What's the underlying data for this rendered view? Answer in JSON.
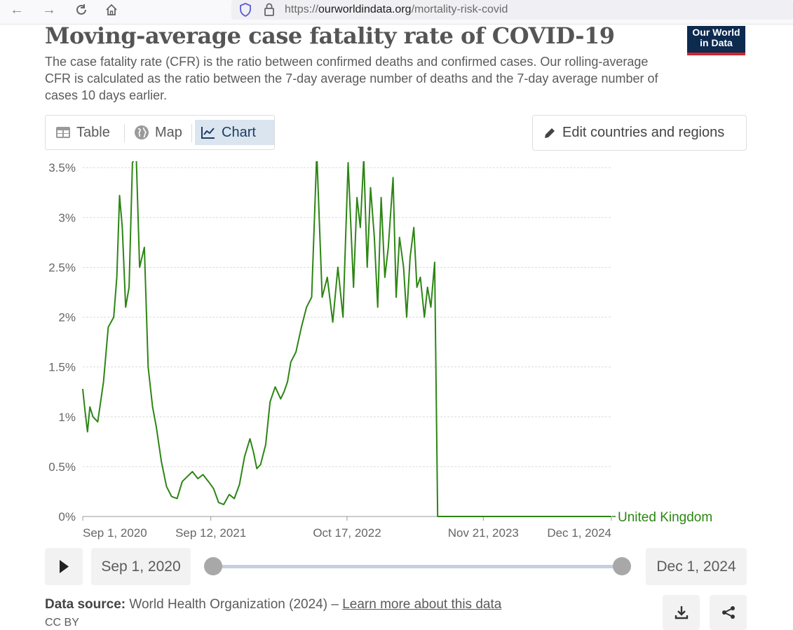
{
  "browser": {
    "url_host": "ourworldindata.org",
    "url_prefix": "https://",
    "url_path": "/mortality-risk-covid",
    "icons": [
      "back-arrow-icon",
      "forward-arrow-icon",
      "reload-icon",
      "home-icon",
      "shield-icon",
      "lock-icon"
    ]
  },
  "header": {
    "title": "Moving-average case fatality rate of COVID-19",
    "subtitle": "The case fatality rate (CFR) is the ratio between confirmed deaths and confirmed cases. Our rolling-average CFR is calculated as the ratio between the 7-day average number of deaths and the 7-day average number of cases 10 days earlier.",
    "logo_line1": "Our World",
    "logo_line2": "in Data",
    "logo_colors": {
      "background": "#0d2a4f",
      "stripe": "#ce2630"
    }
  },
  "tabs": [
    {
      "label": "Table",
      "icon": "table-icon",
      "active": false
    },
    {
      "label": "Map",
      "icon": "globe-icon",
      "active": false
    },
    {
      "label": "Chart",
      "icon": "line-chart-icon",
      "active": true
    }
  ],
  "edit_button": {
    "label": "Edit countries and regions",
    "icon": "pencil-icon"
  },
  "chart_data": {
    "type": "line",
    "title": "",
    "xlabel": "",
    "ylabel": "",
    "y_unit": "%",
    "ylim": [
      0,
      3.6
    ],
    "yticks": [
      0,
      0.5,
      1,
      1.5,
      2,
      2.5,
      3,
      3.5
    ],
    "ytick_labels": [
      "0%",
      "0.5%",
      "1%",
      "1.5%",
      "2%",
      "2.5%",
      "3%",
      "3.5%"
    ],
    "xtick_labels": [
      "Sep 1, 2020",
      "Sep 12, 2021",
      "Oct 17, 2022",
      "Nov 21, 2023",
      "Dec 1, 2024"
    ],
    "xtick_dates": [
      "2020-09-01",
      "2021-09-12",
      "2022-10-17",
      "2023-11-21",
      "2024-12-01"
    ],
    "grid": "horizontal dashed",
    "line_color": "#2d8514",
    "series": [
      {
        "name": "United Kingdom",
        "x": [
          "2020-09-01",
          "2020-09-08",
          "2020-09-15",
          "2020-09-22",
          "2020-10-01",
          "2020-10-15",
          "2020-11-01",
          "2020-11-15",
          "2020-12-01",
          "2020-12-10",
          "2020-12-18",
          "2020-12-26",
          "2021-01-05",
          "2021-01-15",
          "2021-01-25",
          "2021-02-05",
          "2021-02-15",
          "2021-03-01",
          "2021-03-12",
          "2021-03-25",
          "2021-04-05",
          "2021-04-20",
          "2021-05-05",
          "2021-05-20",
          "2021-06-05",
          "2021-06-20",
          "2021-07-05",
          "2021-07-20",
          "2021-08-05",
          "2021-08-20",
          "2021-09-05",
          "2021-09-20",
          "2021-10-05",
          "2021-10-20",
          "2021-11-05",
          "2021-11-20",
          "2021-12-05",
          "2021-12-20",
          "2022-01-05",
          "2022-01-15",
          "2022-01-25",
          "2022-02-05",
          "2022-02-20",
          "2022-03-05",
          "2022-03-20",
          "2022-04-05",
          "2022-04-15",
          "2022-04-25",
          "2022-05-05",
          "2022-05-20",
          "2022-06-05",
          "2022-06-20",
          "2022-07-05",
          "2022-07-20",
          "2022-08-05",
          "2022-08-20",
          "2022-09-05",
          "2022-09-20",
          "2022-10-05",
          "2022-10-20",
          "2022-11-05",
          "2022-11-15",
          "2022-11-25",
          "2022-12-05",
          "2022-12-15",
          "2022-12-25",
          "2023-01-05",
          "2023-01-15",
          "2023-01-25",
          "2023-02-05",
          "2023-02-15",
          "2023-03-01",
          "2023-03-10",
          "2023-03-20",
          "2023-04-01",
          "2023-04-10",
          "2023-04-20",
          "2023-05-01",
          "2023-05-10",
          "2023-05-20",
          "2023-06-01",
          "2023-06-10",
          "2023-06-20",
          "2023-07-01",
          "2023-07-10",
          "2023-07-20",
          "2023-08-01",
          "2023-08-10",
          "2023-08-20",
          "2023-09-01",
          "2023-09-10",
          "2023-09-20",
          "2023-09-28",
          "2023-10-05",
          "2023-10-10",
          "2023-10-15",
          "2023-10-20",
          "2023-10-22",
          "2023-11-21",
          "2024-03-01",
          "2024-07-01",
          "2024-12-01"
        ],
        "values": [
          1.28,
          1.05,
          0.85,
          1.1,
          1.0,
          0.95,
          1.35,
          1.9,
          2.0,
          2.4,
          3.22,
          2.9,
          2.1,
          2.3,
          3.55,
          3.62,
          2.5,
          2.7,
          1.5,
          1.1,
          0.9,
          0.55,
          0.3,
          0.2,
          0.18,
          0.35,
          0.4,
          0.45,
          0.38,
          0.42,
          0.35,
          0.28,
          0.14,
          0.12,
          0.22,
          0.18,
          0.32,
          0.6,
          0.78,
          0.65,
          0.48,
          0.52,
          0.72,
          1.15,
          1.3,
          1.18,
          1.25,
          1.35,
          1.55,
          1.65,
          1.9,
          2.1,
          2.2,
          3.65,
          2.2,
          2.4,
          1.95,
          2.5,
          2.0,
          3.55,
          2.3,
          3.2,
          2.9,
          3.6,
          2.5,
          3.3,
          2.8,
          2.1,
          3.2,
          2.4,
          2.7,
          3.4,
          2.2,
          2.8,
          2.5,
          2.0,
          2.6,
          2.9,
          2.3,
          2.4,
          2.0,
          2.3,
          2.1,
          2.55,
          0.0,
          0.0,
          0.0,
          0.0,
          0.0,
          0.0,
          0.0,
          0.0,
          0.0,
          0.0,
          0.0,
          0.0,
          0.0,
          0.0,
          0.0,
          0.0,
          0.0,
          0.0
        ]
      }
    ]
  },
  "timeline": {
    "start_label": "Sep 1, 2020",
    "end_label": "Dec 1, 2024",
    "play_icon": "play-icon"
  },
  "footer": {
    "source_label": "Data source:",
    "source_text": "World Health Organization (2024) – ",
    "learn_more": "Learn more about this data",
    "license": "CC BY",
    "download_icon": "download-icon",
    "share_icon": "share-icon"
  }
}
